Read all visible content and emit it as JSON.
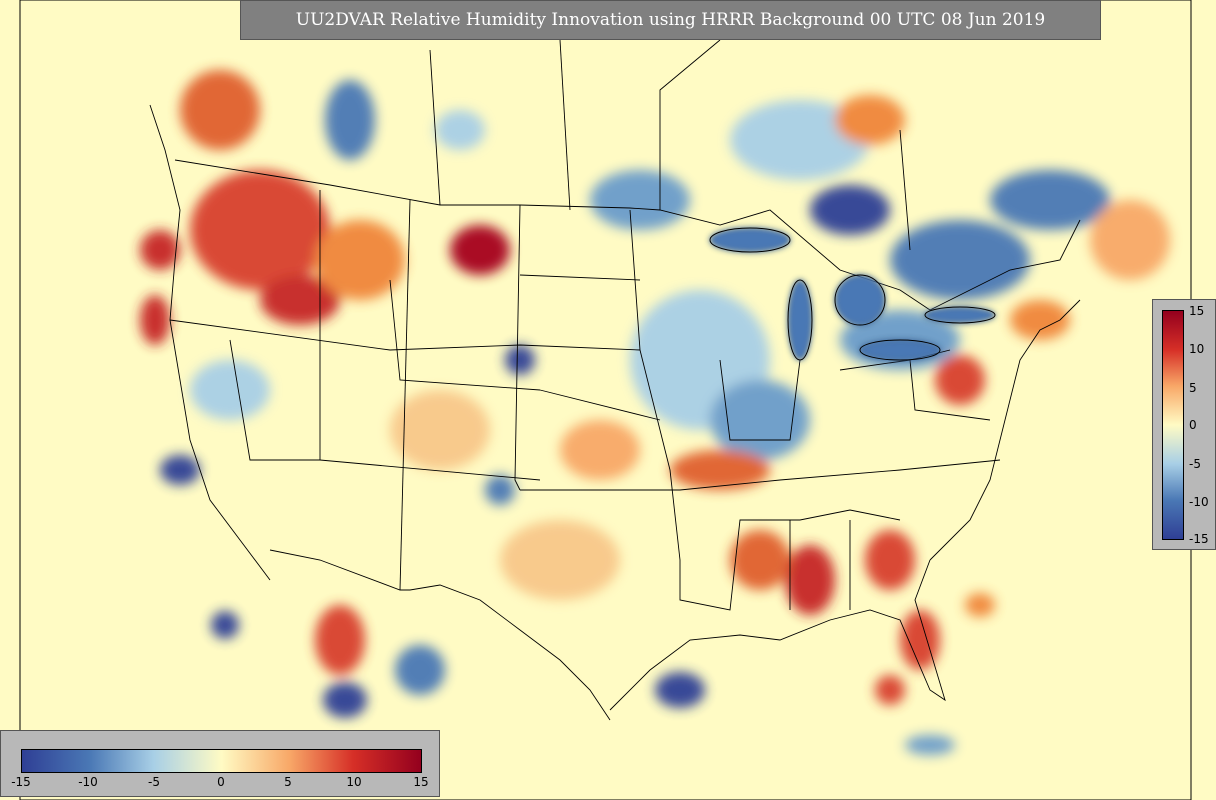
{
  "title": "UU2DVAR Relative Humidity Innovation using HRRR Background 00 UTC 08 Jun 2019",
  "colorbar": {
    "min": -15,
    "max": 15,
    "vertical_ticks": [
      "15",
      "10",
      "5",
      "0",
      "-5",
      "-10",
      "-15"
    ],
    "horizontal_ticks": [
      "-15",
      "-10",
      "-5",
      "0",
      "5",
      "10",
      "15"
    ],
    "colors": [
      "#2f3f95",
      "#4a78b5",
      "#a8cfe6",
      "#fffbc4",
      "#f8a868",
      "#d62f27",
      "#94001e"
    ]
  },
  "colors": {
    "background": "#fffbc4",
    "panel": "#b8b8b8",
    "title_box": "#808080"
  }
}
